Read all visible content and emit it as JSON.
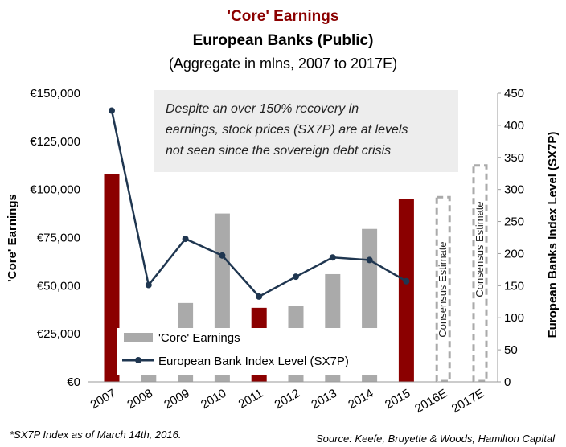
{
  "chart_data": {
    "type": "bar",
    "title": "'Core' Earnings",
    "subtitle": "European Banks (Public)",
    "subtitle2": "(Aggregate in mlns, 2007 to 2017E)",
    "categories": [
      "2007",
      "2008",
      "2009",
      "2010",
      "2011",
      "2012",
      "2013",
      "2014",
      "2015",
      "2016E",
      "2017E"
    ],
    "series": [
      {
        "name": "'Core' Earnings",
        "type": "bar",
        "axis": "left",
        "values": [
          108000,
          6000,
          41000,
          87500,
          38500,
          39500,
          56000,
          79500,
          95000,
          96000,
          112500
        ],
        "bar_colors": [
          "#8b0000",
          "#aaaaaa",
          "#aaaaaa",
          "#aaaaaa",
          "#8b0000",
          "#aaaaaa",
          "#aaaaaa",
          "#aaaaaa",
          "#8b0000",
          "dashed",
          "dashed"
        ]
      },
      {
        "name": "European Bank Index Level (SX7P)",
        "type": "line",
        "axis": "right",
        "values": [
          423,
          151,
          223,
          197,
          133,
          164,
          194,
          190,
          157,
          null,
          null
        ]
      }
    ],
    "ylabel_left": "'Core' Earnings",
    "ylabel_right": "European Banks Index Level (SX7P)",
    "ylim_left": [
      0,
      150000
    ],
    "ylim_right": [
      0,
      450
    ],
    "yticks_left": [
      "€0",
      "€25,000",
      "€50,000",
      "€75,000",
      "€100,000",
      "€125,000",
      "€150,000"
    ],
    "yticks_right": [
      "0",
      "50",
      "100",
      "150",
      "200",
      "250",
      "300",
      "350",
      "400",
      "450"
    ],
    "annotation": [
      "Despite an over 150% recovery in",
      "earnings, stock prices (SX7P) are at levels",
      "not seen since the sovereign debt crisis"
    ],
    "estimate_label": "Consensus Estimate",
    "grid": false,
    "legend_position": "bottom-left"
  },
  "footnote_left": "*SX7P Index as of March 14th, 2016.",
  "footnote_right": "Source: Keefe, Bruyette & Woods, Hamilton Capital",
  "colors": {
    "highlight_bar": "#8b0000",
    "normal_bar": "#aaaaaa",
    "line": "#1f3650",
    "title_red": "#8b0000",
    "annotation_bg": "#ededed",
    "dash": "#aaaaaa"
  }
}
